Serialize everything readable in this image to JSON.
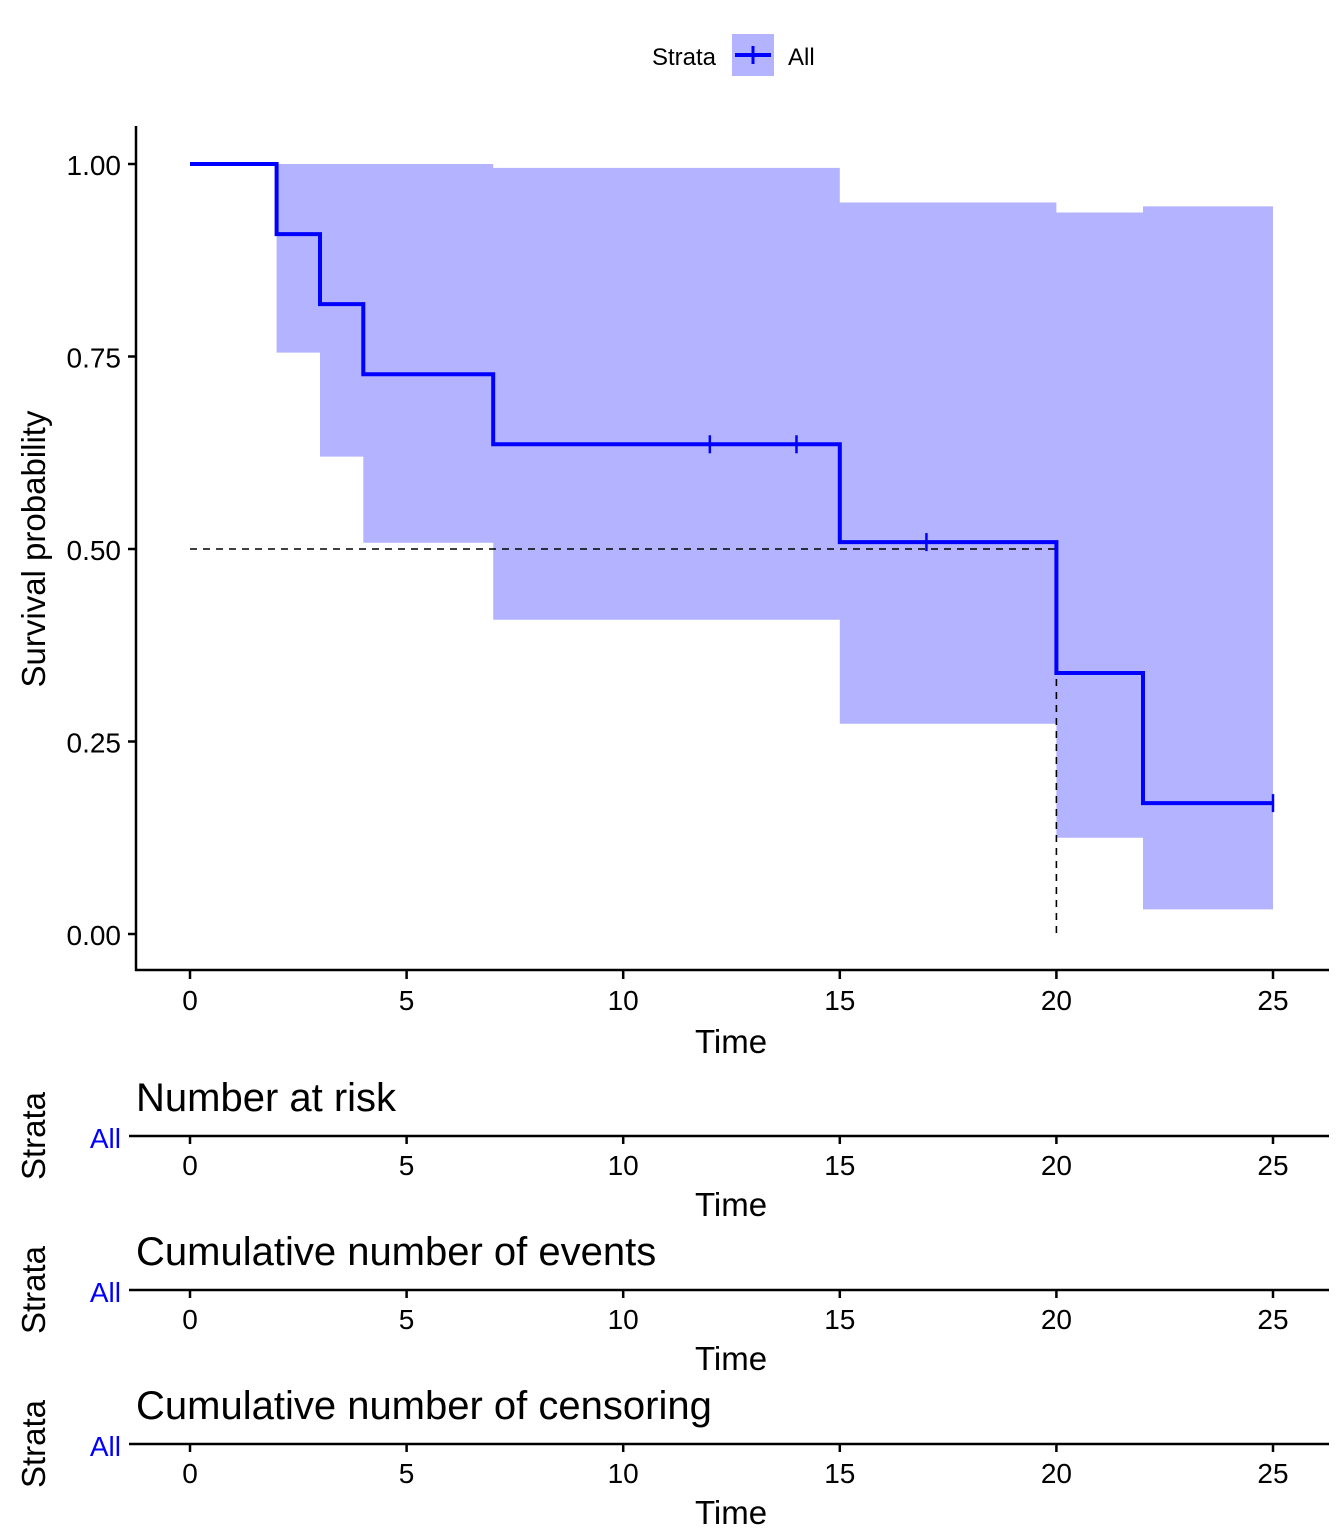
{
  "legend": {
    "title": "Strata",
    "entry": "All",
    "line_color": "#0000FF",
    "fill_color": "#B3B3FF"
  },
  "chart_data": [
    {
      "type": "line",
      "subtype": "kaplan-meier step",
      "title": "",
      "xlabel": "Time",
      "ylabel": "Survival probability",
      "xlim": [
        0,
        25
      ],
      "ylim": [
        0,
        1
      ],
      "xticks": [
        "0",
        "5",
        "10",
        "15",
        "20",
        "25"
      ],
      "yticks": [
        "0.00",
        "0.25",
        "0.50",
        "0.75",
        "1.00"
      ],
      "grid": false,
      "legend_position": "top",
      "series": [
        {
          "name": "All",
          "color": "#0000FF",
          "steps": [
            {
              "x": 0,
              "y": 1.0
            },
            {
              "x": 2,
              "y": 0.909
            },
            {
              "x": 3,
              "y": 0.818
            },
            {
              "x": 4,
              "y": 0.727
            },
            {
              "x": 7,
              "y": 0.636
            },
            {
              "x": 15,
              "y": 0.509
            },
            {
              "x": 20,
              "y": 0.339
            },
            {
              "x": 22,
              "y": 0.17
            }
          ],
          "end_x": 25,
          "censor_times": [
            12,
            14,
            17,
            25
          ],
          "ci": [
            {
              "x": 0,
              "lower": 1.0,
              "upper": 1.0
            },
            {
              "x": 2,
              "lower": 0.755,
              "upper": 1.0
            },
            {
              "x": 3,
              "lower": 0.62,
              "upper": 1.0
            },
            {
              "x": 4,
              "lower": 0.508,
              "upper": 1.0
            },
            {
              "x": 7,
              "lower": 0.408,
              "upper": 0.995
            },
            {
              "x": 15,
              "lower": 0.273,
              "upper": 0.95
            },
            {
              "x": 20,
              "lower": 0.125,
              "upper": 0.937
            },
            {
              "x": 22,
              "lower": 0.032,
              "upper": 0.945
            }
          ]
        }
      ],
      "median_line": {
        "y": 0.5,
        "x": 20
      }
    },
    {
      "type": "table",
      "title": "Number at risk",
      "ylabel": "Strata",
      "rows": [
        "All"
      ],
      "xlabel": "Time",
      "xticks": [
        "0",
        "5",
        "10",
        "15",
        "20",
        "25"
      ],
      "values": []
    },
    {
      "type": "table",
      "title": "Cumulative number of events",
      "ylabel": "Strata",
      "rows": [
        "All"
      ],
      "xlabel": "Time",
      "xticks": [
        "0",
        "5",
        "10",
        "15",
        "20",
        "25"
      ],
      "values": []
    },
    {
      "type": "table",
      "title": "Cumulative number of censoring",
      "ylabel": "Strata",
      "rows": [
        "All"
      ],
      "xlabel": "Time",
      "xticks": [
        "0",
        "5",
        "10",
        "15",
        "20",
        "25"
      ],
      "values": []
    }
  ]
}
